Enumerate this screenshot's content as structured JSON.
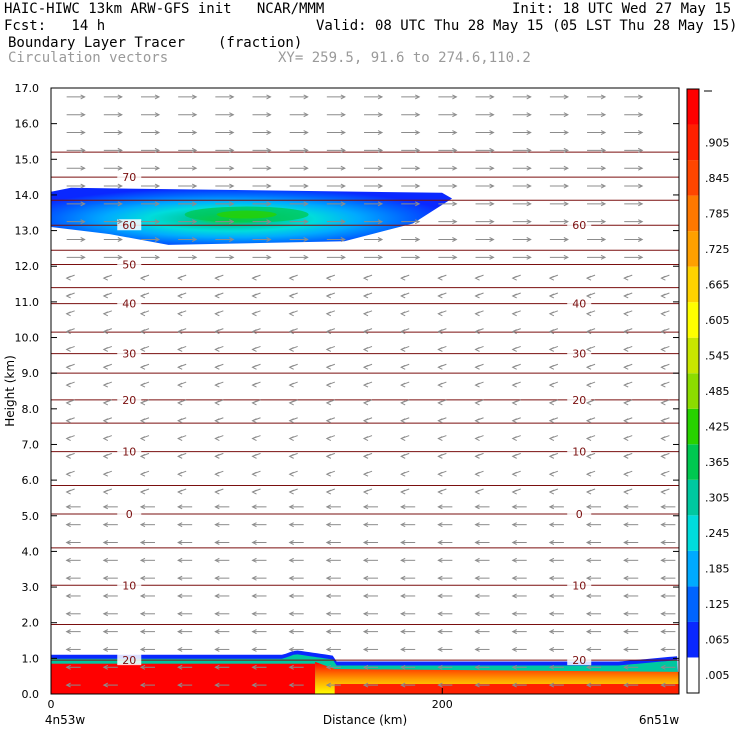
{
  "header": {
    "model_title": "HAIC-HIWC 13km ARW-GFS init   NCAR/MMM",
    "init": "Init: 18 UTC Wed 27 May 15",
    "fcst": "Fcst:   14 h",
    "valid": "Valid: 08 UTC Thu 28 May 15 (05 LST Thu 28 May 15)",
    "field1": "Boundary Layer Tracer",
    "field1_units": "(fraction)",
    "field2": "Circulation vectors",
    "xy": "XY= 259.5, 91.6 to 274.6,110.2"
  },
  "colors": {
    "contour": "#7a0f0f",
    "vector": "#8c8c8c",
    "frame": "#000000"
  },
  "chart_data": {
    "type": "heatmap",
    "xlabel": "Distance (km)",
    "ylabel": "Height (km)",
    "x_ticks": [
      0,
      200
    ],
    "x_left_label": "4n53w",
    "x_right_label": "6n51w",
    "xlim": [
      0,
      321
    ],
    "ylim": [
      0,
      17
    ],
    "y_ticks": [
      "0.0",
      "1.0",
      "2.0",
      "3.0",
      "4.0",
      "5.0",
      "6.0",
      "7.0",
      "8.0",
      "9.0",
      "10.0",
      "11.0",
      "12.0",
      "13.0",
      "14.0",
      "15.0",
      "16.0",
      "17.0"
    ],
    "colorbar": {
      "labels": [
        ".005",
        ".065",
        ".125",
        ".185",
        ".245",
        ".305",
        ".365",
        ".425",
        ".485",
        ".545",
        ".605",
        ".665",
        ".725",
        ".785",
        ".845",
        ".905"
      ],
      "colors": [
        "#ffffff",
        "#0a28ff",
        "#0064ff",
        "#00aaff",
        "#00dcdc",
        "#00c8a0",
        "#00c850",
        "#28d200",
        "#8cdc00",
        "#c8e600",
        "#ffff00",
        "#ffd200",
        "#ffa000",
        "#ff7800",
        "#ff4600",
        "#ff2000",
        "#ff0000"
      ]
    },
    "temperature_contours": [
      {
        "label": "70",
        "height_km": 14.5
      },
      {
        "label": "60",
        "height_km": 13.15
      },
      {
        "label": "50",
        "height_km": 12.05
      },
      {
        "label": "40",
        "height_km": 10.95
      },
      {
        "label": "30",
        "height_km": 9.55
      },
      {
        "label": "20",
        "height_km": 8.25
      },
      {
        "label": "10",
        "height_km": 6.8
      },
      {
        "label": "0",
        "height_km": 5.05
      },
      {
        "label": "10",
        "height_km": 3.05
      },
      {
        "label": "20",
        "height_km": 0.95
      }
    ],
    "unlabeled_contours_km": [
      15.2,
      13.85,
      12.45,
      11.4,
      10.15,
      9.0,
      7.6,
      5.85,
      4.1,
      1.95
    ],
    "tracer_regions": [
      {
        "name": "upper",
        "x_range_km": [
          0,
          205
        ],
        "z_range_km": [
          12.6,
          14.2
        ],
        "peak": 0.42
      },
      {
        "name": "boundary_layer",
        "x_range_km": [
          0,
          321
        ],
        "z_range_km": [
          0,
          1.0
        ],
        "peak": 1.0
      }
    ]
  }
}
